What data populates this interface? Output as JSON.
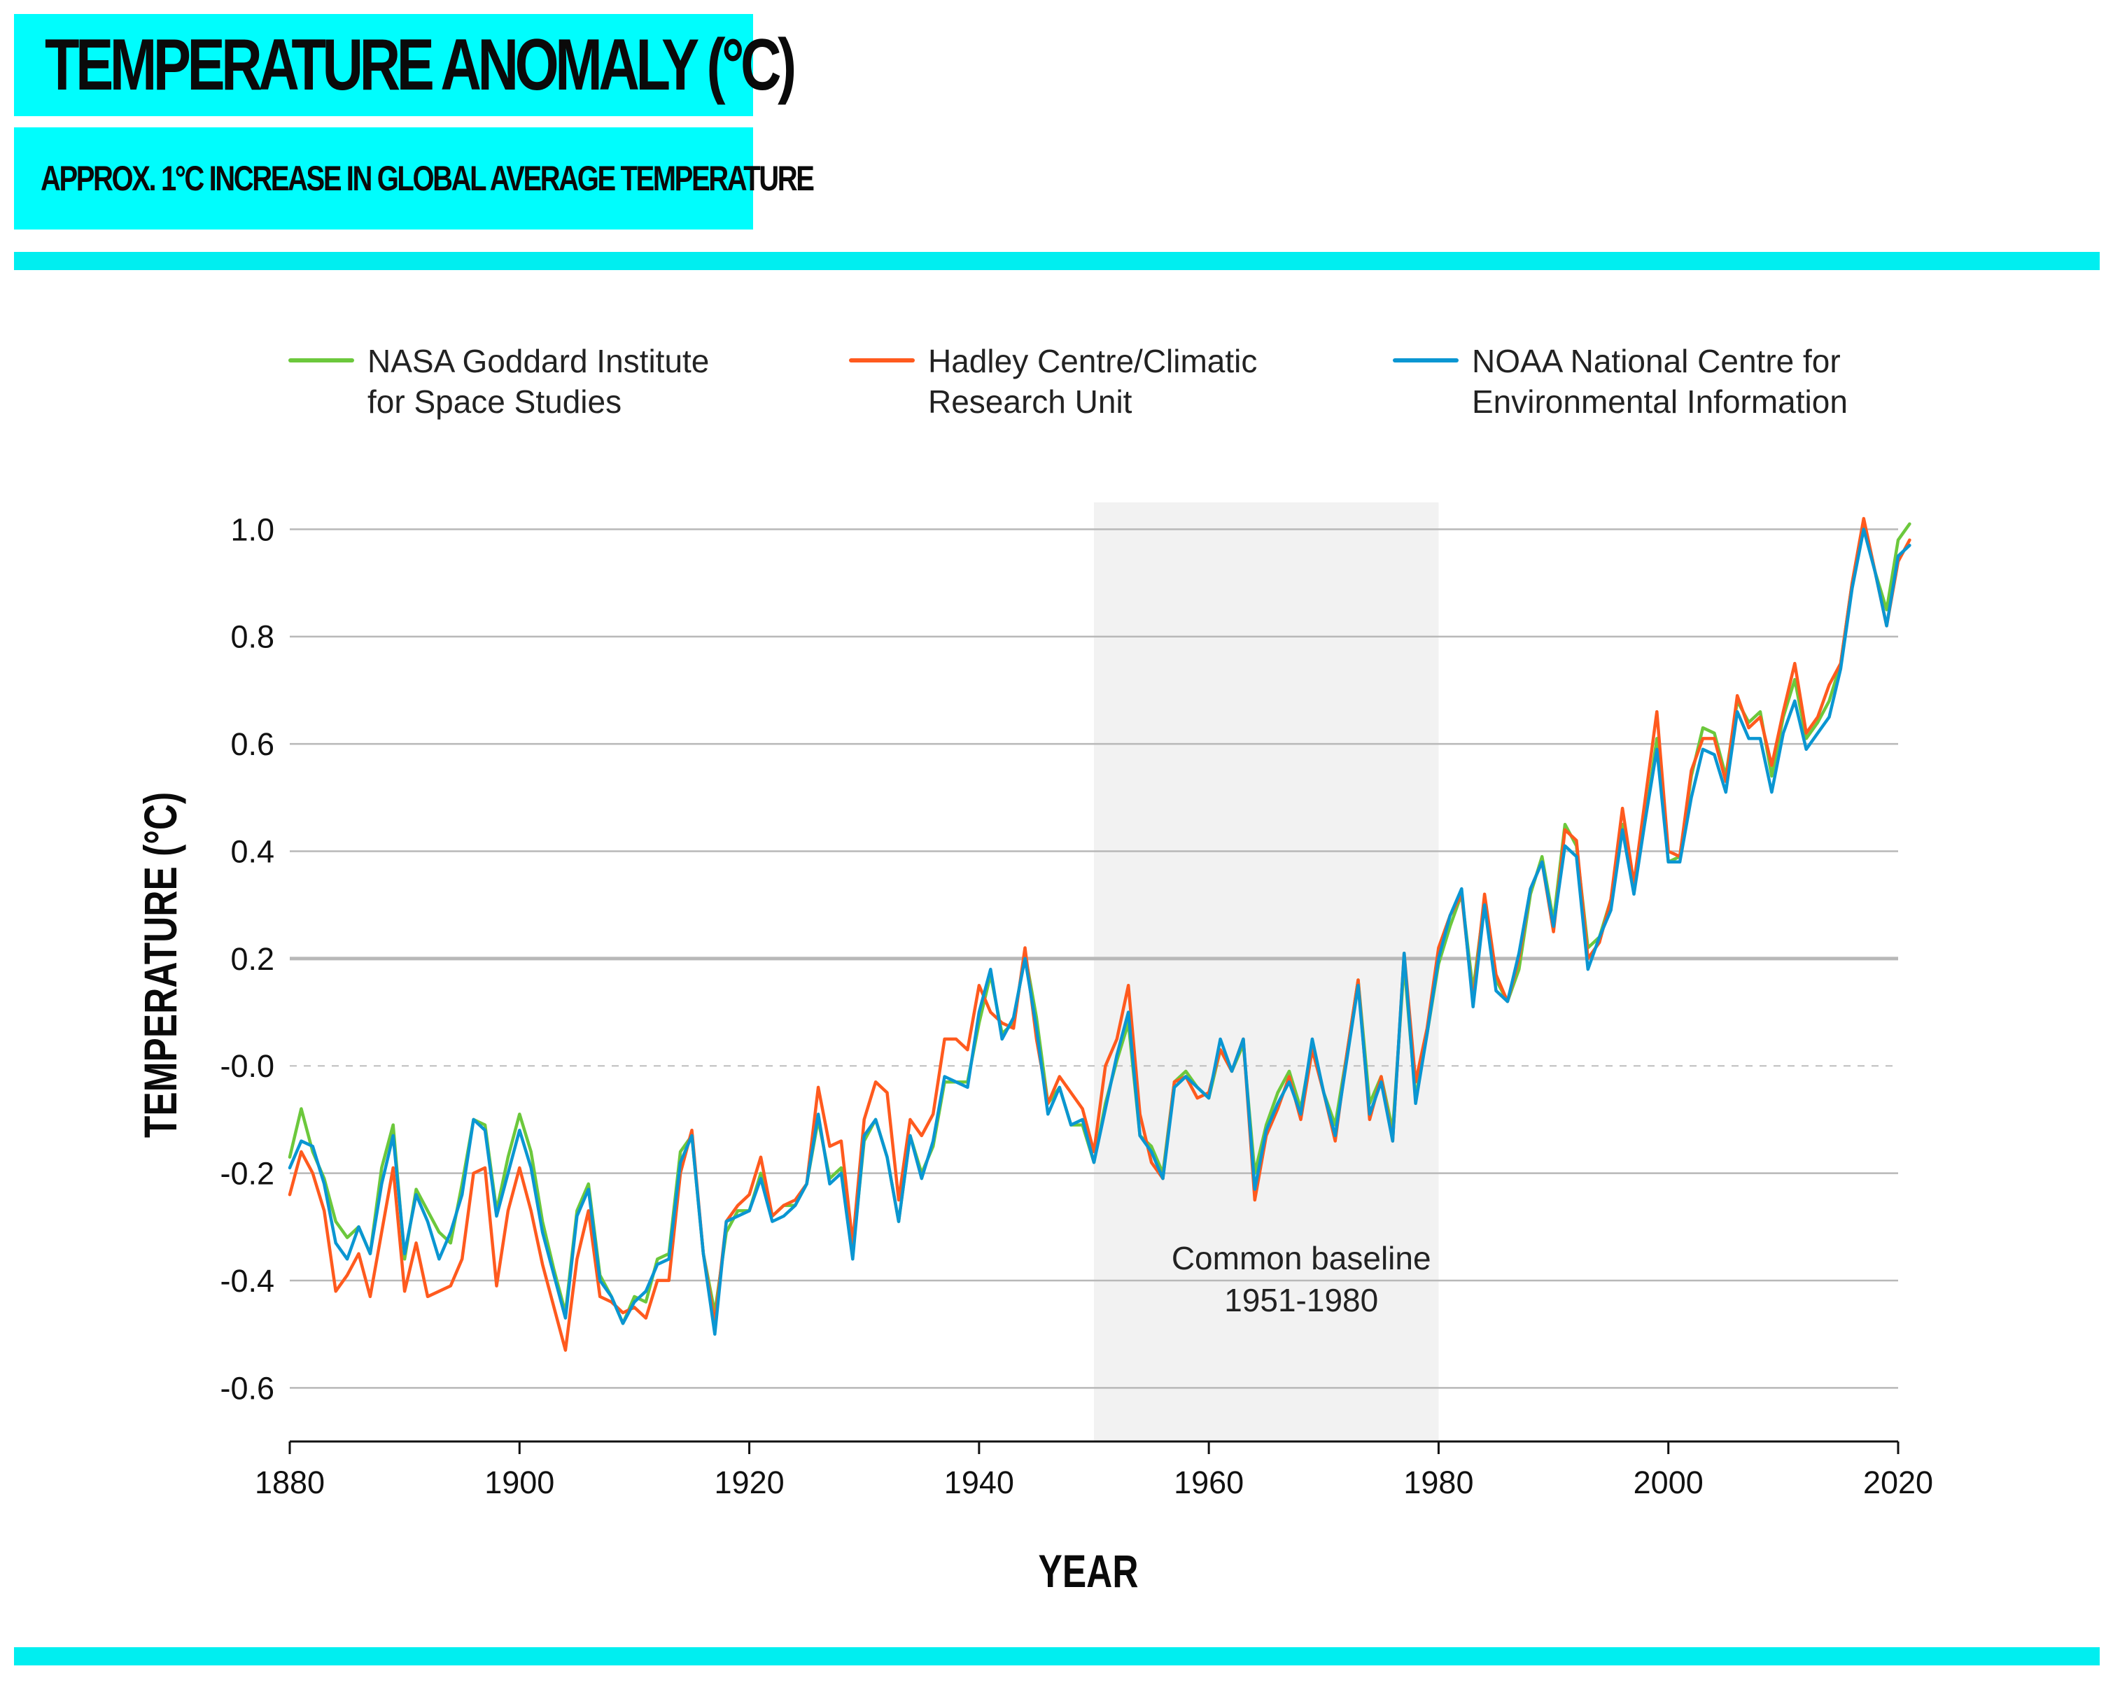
{
  "header": {
    "title": "TEMPERATURE ANOMALY (°C)",
    "subtitle": "APPROX. 1°C INCREASE IN GLOBAL AVERAGE TEMPERATURE"
  },
  "colors": {
    "accent": "#00fdfd",
    "nasa": "#6cc83c",
    "hadley": "#ff5a1e",
    "noaa": "#0a96d2",
    "baseline_band": "#f2f2f2",
    "grid": "#b8b8b8"
  },
  "chart_data": {
    "type": "line",
    "title": "TEMPERATURE ANOMALY (°C)",
    "xlabel": "YEAR",
    "ylabel": "TEMPERATURE (°C)",
    "xlim": [
      1880,
      2020
    ],
    "ylim": [
      -0.7,
      1.05
    ],
    "x_ticks": [
      1880,
      1900,
      1920,
      1940,
      1960,
      1980,
      2000,
      2020
    ],
    "y_ticks": [
      1.0,
      0.8,
      0.6,
      0.4,
      0.2,
      0.0,
      -0.2,
      -0.4,
      -0.6
    ],
    "y_tick_labels": [
      "1.0",
      "0.8",
      "0.6",
      "0.4",
      "0.2",
      "-0.0",
      "-0.2",
      "-0.4",
      "-0.6"
    ],
    "grid": true,
    "legend_position": "top",
    "baseline_band": {
      "from": 1950,
      "to": 1980,
      "label_line1": "Common baseline",
      "label_line2": "1951-1980"
    },
    "series": [
      {
        "name": "NASA Goddard Institute for Space Studies",
        "legend_line1": "NASA Goddard Institute",
        "legend_line2": "for Space Studies",
        "color_key": "nasa",
        "start_year": 1880,
        "values": [
          -0.17,
          -0.08,
          -0.16,
          -0.21,
          -0.29,
          -0.32,
          -0.3,
          -0.35,
          -0.19,
          -0.11,
          -0.36,
          -0.23,
          -0.27,
          -0.31,
          -0.33,
          -0.22,
          -0.1,
          -0.11,
          -0.27,
          -0.17,
          -0.09,
          -0.16,
          -0.29,
          -0.38,
          -0.46,
          -0.27,
          -0.22,
          -0.39,
          -0.43,
          -0.48,
          -0.43,
          -0.44,
          -0.36,
          -0.35,
          -0.16,
          -0.13,
          -0.35,
          -0.46,
          -0.31,
          -0.27,
          -0.27,
          -0.2,
          -0.28,
          -0.26,
          -0.26,
          -0.22,
          -0.1,
          -0.21,
          -0.19,
          -0.35,
          -0.14,
          -0.1,
          -0.17,
          -0.29,
          -0.13,
          -0.2,
          -0.15,
          -0.03,
          -0.03,
          -0.03,
          0.08,
          0.17,
          0.06,
          0.08,
          0.21,
          0.09,
          -0.07,
          -0.04,
          -0.11,
          -0.11,
          -0.18,
          -0.07,
          0.01,
          0.08,
          -0.13,
          -0.15,
          -0.2,
          -0.03,
          -0.01,
          -0.04,
          -0.06,
          0.03,
          -0.01,
          0.04,
          -0.2,
          -0.11,
          -0.05,
          -0.01,
          -0.08,
          0.04,
          -0.05,
          -0.11,
          0.02,
          0.16,
          -0.07,
          -0.02,
          -0.12,
          0.19,
          -0.06,
          0.06,
          0.19,
          0.26,
          0.32,
          0.14,
          0.31,
          0.16,
          0.12,
          0.18,
          0.32,
          0.39,
          0.27,
          0.45,
          0.41,
          0.22,
          0.24,
          0.31,
          0.45,
          0.33,
          0.46,
          0.61,
          0.38,
          0.39,
          0.54,
          0.63,
          0.62,
          0.54,
          0.68,
          0.64,
          0.66,
          0.54,
          0.65,
          0.72,
          0.61,
          0.64,
          0.68,
          0.75,
          0.9,
          1.01,
          0.92,
          0.85,
          0.98,
          1.01
        ]
      },
      {
        "name": "Hadley Centre/Climatic Research Unit",
        "legend_line1": "Hadley Centre/Climatic",
        "legend_line2": "Research Unit",
        "color_key": "hadley",
        "start_year": 1880,
        "values": [
          -0.24,
          -0.16,
          -0.2,
          -0.27,
          -0.42,
          -0.39,
          -0.35,
          -0.43,
          -0.31,
          -0.19,
          -0.42,
          -0.33,
          -0.43,
          -0.42,
          -0.41,
          -0.36,
          -0.2,
          -0.19,
          -0.41,
          -0.27,
          -0.19,
          -0.27,
          -0.37,
          -0.45,
          -0.53,
          -0.36,
          -0.27,
          -0.43,
          -0.44,
          -0.46,
          -0.45,
          -0.47,
          -0.4,
          -0.4,
          -0.2,
          -0.12,
          -0.35,
          -0.48,
          -0.29,
          -0.26,
          -0.24,
          -0.17,
          -0.28,
          -0.26,
          -0.25,
          -0.22,
          -0.04,
          -0.15,
          -0.14,
          -0.33,
          -0.1,
          -0.03,
          -0.05,
          -0.25,
          -0.1,
          -0.13,
          -0.09,
          0.05,
          0.05,
          0.03,
          0.15,
          0.1,
          0.08,
          0.07,
          0.22,
          0.05,
          -0.07,
          -0.02,
          -0.05,
          -0.08,
          -0.16,
          0.0,
          0.05,
          0.15,
          -0.09,
          -0.18,
          -0.21,
          -0.03,
          -0.02,
          -0.06,
          -0.05,
          0.03,
          -0.01,
          0.05,
          -0.25,
          -0.13,
          -0.08,
          -0.02,
          -0.1,
          0.03,
          -0.05,
          -0.14,
          0.02,
          0.16,
          -0.1,
          -0.02,
          -0.14,
          0.21,
          -0.03,
          0.07,
          0.22,
          0.28,
          0.32,
          0.12,
          0.32,
          0.17,
          0.12,
          0.2,
          0.33,
          0.38,
          0.25,
          0.44,
          0.42,
          0.2,
          0.23,
          0.31,
          0.48,
          0.34,
          0.5,
          0.66,
          0.4,
          0.39,
          0.55,
          0.61,
          0.61,
          0.53,
          0.69,
          0.63,
          0.65,
          0.56,
          0.66,
          0.75,
          0.62,
          0.65,
          0.71,
          0.75,
          0.9,
          1.02,
          0.92,
          0.82,
          0.94,
          0.98
        ]
      },
      {
        "name": "NOAA National Centre for Environmental Information",
        "legend_line1": "NOAA National Centre for",
        "legend_line2": "Environmental Information",
        "color_key": "noaa",
        "start_year": 1880,
        "values": [
          -0.19,
          -0.14,
          -0.15,
          -0.22,
          -0.33,
          -0.36,
          -0.3,
          -0.35,
          -0.22,
          -0.13,
          -0.35,
          -0.24,
          -0.29,
          -0.36,
          -0.31,
          -0.24,
          -0.1,
          -0.12,
          -0.28,
          -0.2,
          -0.12,
          -0.19,
          -0.31,
          -0.39,
          -0.47,
          -0.28,
          -0.23,
          -0.4,
          -0.43,
          -0.48,
          -0.44,
          -0.42,
          -0.37,
          -0.36,
          -0.18,
          -0.13,
          -0.35,
          -0.5,
          -0.29,
          -0.28,
          -0.27,
          -0.21,
          -0.29,
          -0.28,
          -0.26,
          -0.22,
          -0.09,
          -0.22,
          -0.2,
          -0.36,
          -0.13,
          -0.1,
          -0.17,
          -0.29,
          -0.13,
          -0.21,
          -0.14,
          -0.02,
          -0.03,
          -0.04,
          0.1,
          0.18,
          0.05,
          0.09,
          0.2,
          0.07,
          -0.09,
          -0.04,
          -0.11,
          -0.1,
          -0.18,
          -0.08,
          0.02,
          0.1,
          -0.13,
          -0.16,
          -0.21,
          -0.04,
          -0.02,
          -0.04,
          -0.06,
          0.05,
          -0.01,
          0.05,
          -0.23,
          -0.12,
          -0.07,
          -0.03,
          -0.09,
          0.05,
          -0.05,
          -0.13,
          0.01,
          0.15,
          -0.09,
          -0.03,
          -0.14,
          0.21,
          -0.07,
          0.06,
          0.2,
          0.28,
          0.33,
          0.11,
          0.3,
          0.14,
          0.12,
          0.21,
          0.33,
          0.38,
          0.26,
          0.41,
          0.39,
          0.18,
          0.24,
          0.29,
          0.44,
          0.32,
          0.46,
          0.59,
          0.38,
          0.38,
          0.5,
          0.59,
          0.58,
          0.51,
          0.66,
          0.61,
          0.61,
          0.51,
          0.62,
          0.68,
          0.59,
          0.62,
          0.65,
          0.74,
          0.89,
          1.0,
          0.92,
          0.82,
          0.95,
          0.97
        ]
      }
    ]
  }
}
